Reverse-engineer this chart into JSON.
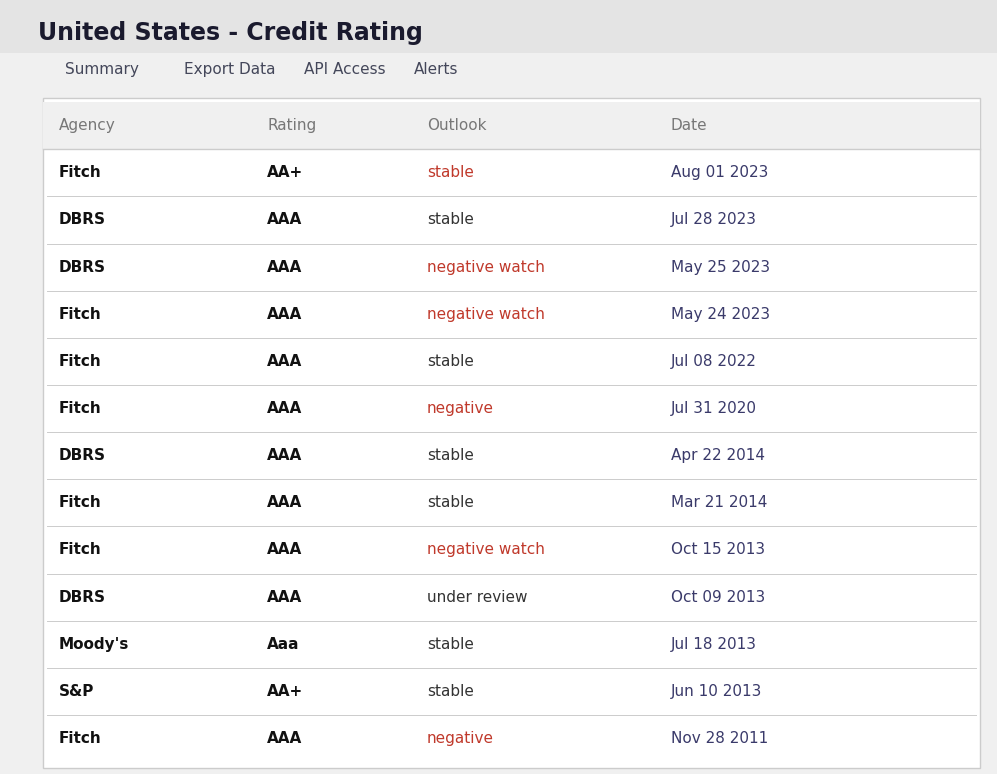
{
  "title": "United States - Credit Rating",
  "nav_items": [
    "Summary",
    "Export Data",
    "API Access",
    "Alerts"
  ],
  "col_headers": [
    "Agency",
    "Rating",
    "Outlook",
    "Date"
  ],
  "rows": [
    {
      "agency": "Fitch",
      "rating": "AA+",
      "outlook": "stable",
      "outlook_color": "#c0392b",
      "outlook_normal": false,
      "date": "Aug 01 2023"
    },
    {
      "agency": "DBRS",
      "rating": "AAA",
      "outlook": "stable",
      "outlook_color": "#333333",
      "outlook_normal": true,
      "date": "Jul 28 2023"
    },
    {
      "agency": "DBRS",
      "rating": "AAA",
      "outlook": "negative watch",
      "outlook_color": "#c0392b",
      "outlook_normal": false,
      "date": "May 25 2023"
    },
    {
      "agency": "Fitch",
      "rating": "AAA",
      "outlook": "negative watch",
      "outlook_color": "#c0392b",
      "outlook_normal": false,
      "date": "May 24 2023"
    },
    {
      "agency": "Fitch",
      "rating": "AAA",
      "outlook": "stable",
      "outlook_color": "#333333",
      "outlook_normal": true,
      "date": "Jul 08 2022"
    },
    {
      "agency": "Fitch",
      "rating": "AAA",
      "outlook": "negative",
      "outlook_color": "#c0392b",
      "outlook_normal": false,
      "date": "Jul 31 2020"
    },
    {
      "agency": "DBRS",
      "rating": "AAA",
      "outlook": "stable",
      "outlook_color": "#333333",
      "outlook_normal": true,
      "date": "Apr 22 2014"
    },
    {
      "agency": "Fitch",
      "rating": "AAA",
      "outlook": "stable",
      "outlook_color": "#333333",
      "outlook_normal": true,
      "date": "Mar 21 2014"
    },
    {
      "agency": "Fitch",
      "rating": "AAA",
      "outlook": "negative watch",
      "outlook_color": "#c0392b",
      "outlook_normal": false,
      "date": "Oct 15 2013"
    },
    {
      "agency": "DBRS",
      "rating": "AAA",
      "outlook": "under review",
      "outlook_color": "#333333",
      "outlook_normal": true,
      "date": "Oct 09 2013"
    },
    {
      "agency": "Moody's",
      "rating": "Aaa",
      "outlook": "stable",
      "outlook_color": "#333333",
      "outlook_normal": true,
      "date": "Jul 18 2013"
    },
    {
      "agency": "S&P",
      "rating": "AA+",
      "outlook": "stable",
      "outlook_color": "#333333",
      "outlook_normal": true,
      "date": "Jun 10 2013"
    },
    {
      "agency": "Fitch",
      "rating": "AAA",
      "outlook": "negative",
      "outlook_color": "#c0392b",
      "outlook_normal": false,
      "date": "Nov 28 2011"
    }
  ],
  "bg_color": "#f0f0f0",
  "table_bg": "#ffffff",
  "header_bg": "#f0f0f0",
  "border_color": "#cccccc",
  "title_color": "#1a1a2e",
  "nav_color": "#44475a",
  "header_text_color": "#777777",
  "agency_color": "#111111",
  "rating_color": "#111111",
  "date_color": "#3a3a6a",
  "stable_color": "#333333",
  "title_fontsize": 17,
  "nav_fontsize": 11,
  "header_fontsize": 11,
  "cell_fontsize": 11
}
